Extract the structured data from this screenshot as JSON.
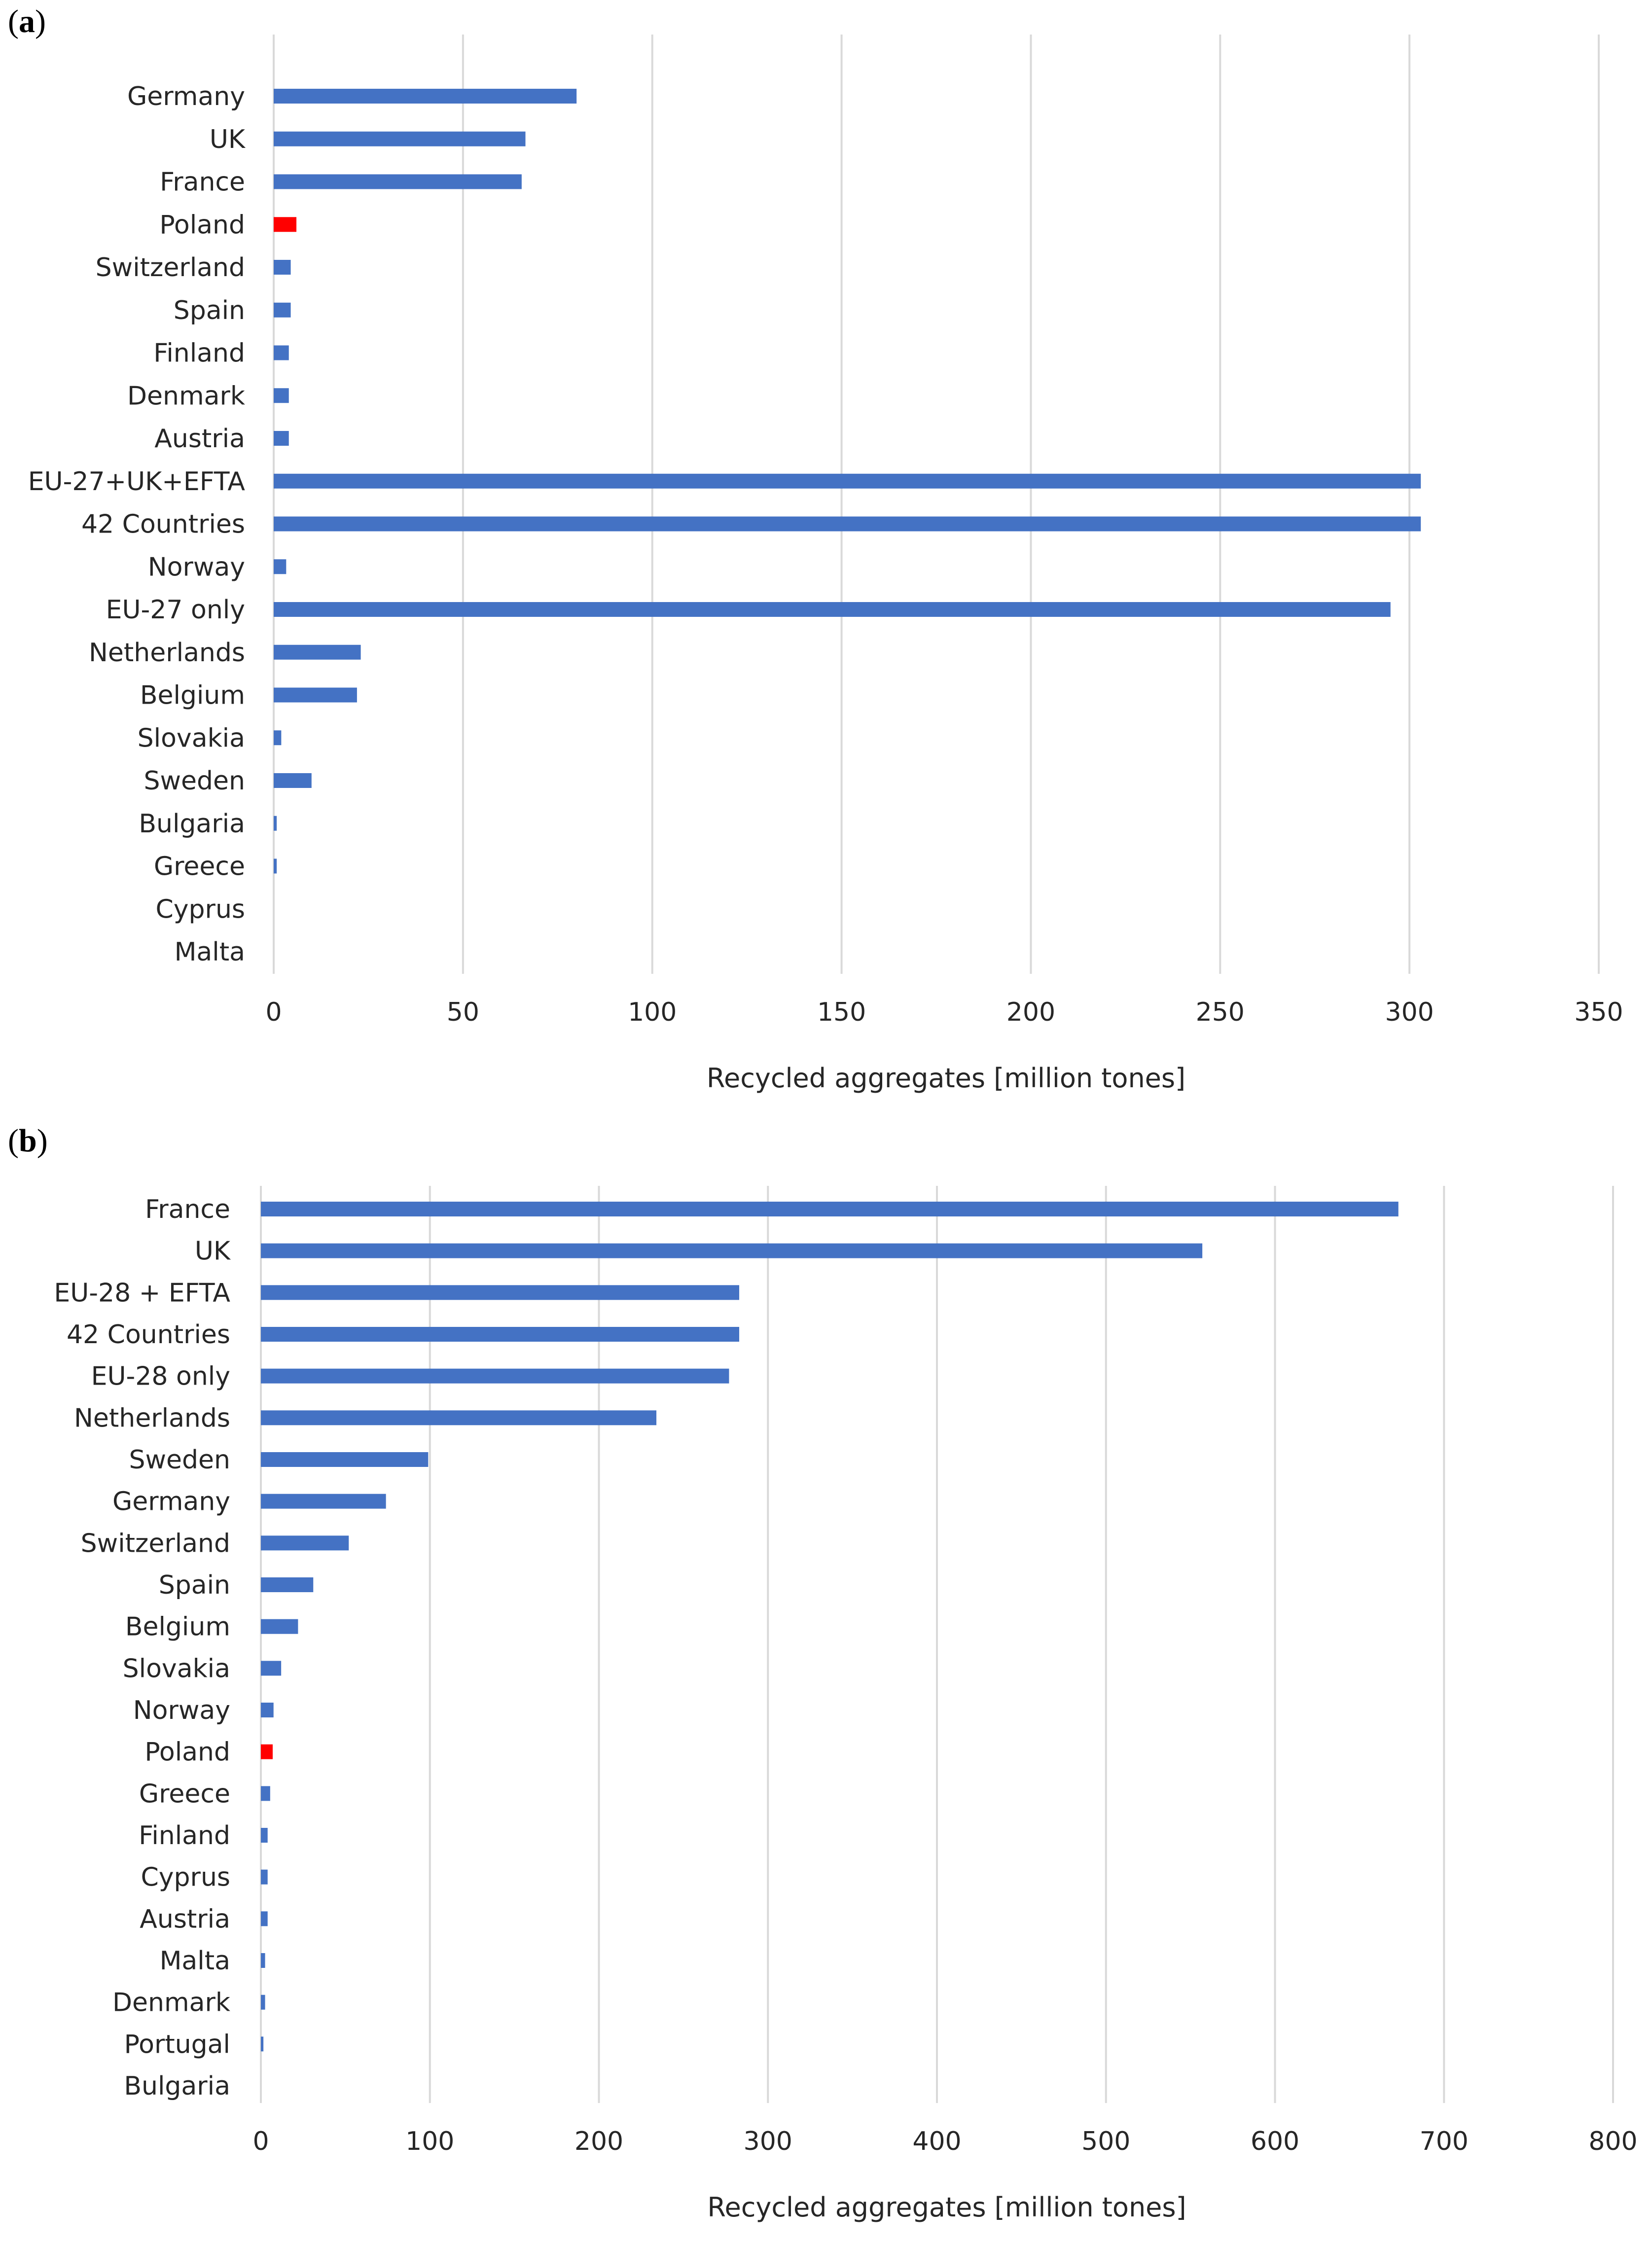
{
  "chart_data": [
    {
      "panel_label_open": "(",
      "panel_label_letter": "a",
      "panel_label_close": ")",
      "type": "bar",
      "orientation": "horizontal",
      "xlabel": "Recycled aggregates [million tones]",
      "xlim": [
        0,
        350
      ],
      "xticks": [
        0,
        50,
        100,
        150,
        200,
        250,
        300,
        350
      ],
      "grid": true,
      "bar_color": "#4472C4",
      "highlight_color": "#FF0000",
      "highlight": [
        "Poland"
      ],
      "categories": [
        "Germany",
        "UK",
        "France",
        "Poland",
        "Switzerland",
        "Spain",
        "Finland",
        "Denmark",
        "Austria",
        "EU-27+UK+EFTA",
        "42 Countries",
        "Norway",
        "EU-27 only",
        "Netherlands",
        "Belgium",
        "Slovakia",
        "Sweden",
        "Bulgaria",
        "Greece",
        "Cyprus",
        "Malta"
      ],
      "values": [
        80,
        66.5,
        65.5,
        6,
        4.5,
        4.5,
        4,
        4,
        4,
        303,
        303,
        3.3,
        295,
        23,
        22,
        2,
        10,
        0.8,
        0.8,
        0,
        0
      ]
    },
    {
      "panel_label_open": "(",
      "panel_label_letter": "b",
      "panel_label_close": ")",
      "type": "bar",
      "orientation": "horizontal",
      "xlabel": "Recycled aggregates [million tones]",
      "xlim": [
        0,
        800
      ],
      "xticks": [
        0,
        100,
        200,
        300,
        400,
        500,
        600,
        700,
        800
      ],
      "grid": true,
      "bar_color": "#4472C4",
      "highlight_color": "#FF0000",
      "highlight": [
        "Poland"
      ],
      "categories": [
        "France",
        "UK",
        "EU-28 + EFTA",
        "42 Countries",
        "EU-28 only",
        "Netherlands",
        "Sweden",
        "Germany",
        "Switzerland",
        "Spain",
        "Belgium",
        "Slovakia",
        "Norway",
        "Poland",
        "Greece",
        "Finland",
        "Cyprus",
        "Austria",
        "Malta",
        "Denmark",
        "Portugal",
        "Bulgaria"
      ],
      "values": [
        673,
        557,
        283,
        283,
        277,
        234,
        99,
        74,
        52,
        31,
        22,
        12,
        7.5,
        7,
        5.5,
        4,
        4,
        4,
        2.5,
        2.5,
        1.5,
        0
      ]
    }
  ]
}
